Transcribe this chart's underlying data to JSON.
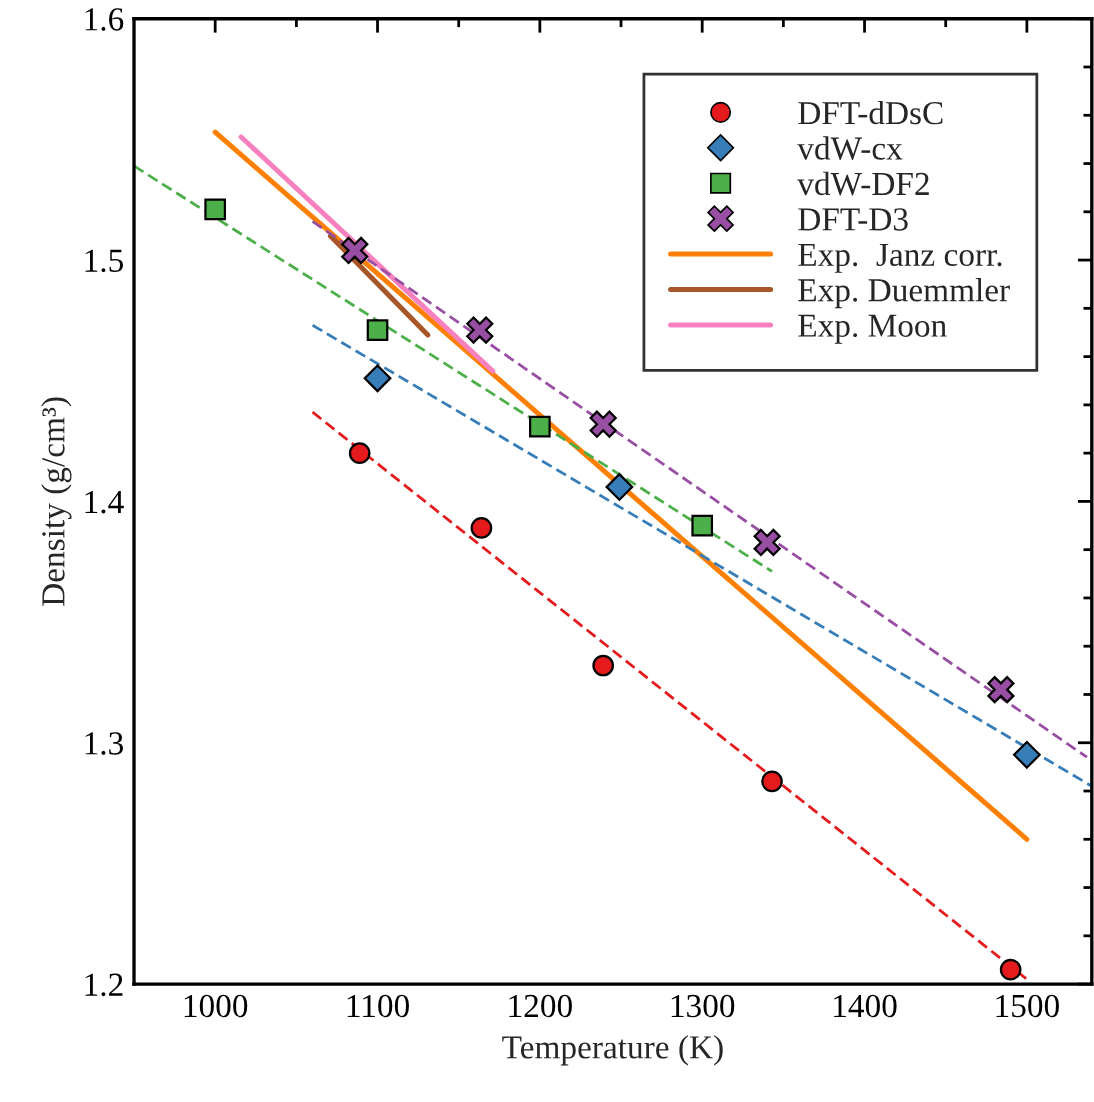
{
  "chart_data": {
    "type": "scatter",
    "xlabel": "Temperature (K)",
    "ylabel": "Density (g/cm³)",
    "xlim": [
      950,
      1540
    ],
    "ylim": [
      1.2,
      1.6
    ],
    "xticks": [
      1000,
      {
        "value": 1050,
        "label": null
      },
      1100,
      {
        "value": 1150,
        "label": null
      },
      1200,
      {
        "value": 1250,
        "label": null
      },
      1300,
      {
        "value": 1350,
        "label": null
      },
      1400,
      {
        "value": 1450,
        "label": null
      },
      1500
    ],
    "yticks": [
      1.2,
      {
        "value": 1.22,
        "label": null
      },
      {
        "value": 1.24,
        "label": null
      },
      {
        "value": 1.26,
        "label": null
      },
      {
        "value": 1.28,
        "label": null
      },
      1.3,
      {
        "value": 1.32,
        "label": null
      },
      {
        "value": 1.34,
        "label": null
      },
      {
        "value": 1.36,
        "label": null
      },
      {
        "value": 1.38,
        "label": null
      },
      1.4,
      {
        "value": 1.42,
        "label": null
      },
      {
        "value": 1.44,
        "label": null
      },
      {
        "value": 1.46,
        "label": null
      },
      {
        "value": 1.48,
        "label": null
      },
      1.5,
      {
        "value": 1.52,
        "label": null
      },
      {
        "value": 1.54,
        "label": null
      },
      {
        "value": 1.56,
        "label": null
      },
      {
        "value": 1.58,
        "label": null
      },
      1.6
    ],
    "grid": false,
    "legend": "top right",
    "series": [
      {
        "name": "DFT-dDsC",
        "marker": "circle",
        "color": "#e41a1c",
        "x": [
          1089,
          1164,
          1239,
          1343,
          1490
        ],
        "values": [
          1.42,
          1.389,
          1.332,
          1.284,
          1.206
        ]
      },
      {
        "name": "vdW-cx",
        "marker": "diamond",
        "color": "#377eb8",
        "x": [
          1100,
          1249,
          1500
        ],
        "values": [
          1.451,
          1.406,
          1.295
        ]
      },
      {
        "name": "vdW-DF2",
        "marker": "square",
        "color": "#4daf4a",
        "x": [
          1000,
          1100,
          1200,
          1300
        ],
        "values": [
          1.521,
          1.471,
          1.431,
          1.39
        ]
      },
      {
        "name": "DFT-D3",
        "marker": "cross",
        "color": "#984ea3",
        "x": [
          1086,
          1163,
          1239,
          1340,
          1484
        ],
        "values": [
          1.504,
          1.471,
          1.432,
          1.383,
          1.322
        ]
      },
      {
        "name": "Exp.  Janz corr.",
        "type": "line",
        "line_style": "solid",
        "color": "#ff7f00",
        "x": [
          1000,
          1500
        ],
        "values": [
          1.553,
          1.26
        ]
      },
      {
        "name": "Exp. Duemmler",
        "type": "line",
        "line_style": "solid",
        "color": "#a65628",
        "x": [
          1071,
          1131
        ],
        "values": [
          1.51,
          1.469
        ]
      },
      {
        "name": "Exp. Moon",
        "type": "line",
        "line_style": "solid",
        "color": "#f781bf",
        "x": [
          1016,
          1171
        ],
        "values": [
          1.551,
          1.454
        ]
      },
      {
        "type": "line",
        "line_style": "dashed",
        "color": "#e41a1c",
        "x": [
          1060,
          1500
        ],
        "values": [
          1.437,
          1.202
        ]
      },
      {
        "type": "line",
        "line_style": "dashed",
        "color": "#377eb8",
        "x": [
          1060,
          1540
        ],
        "values": [
          1.473,
          1.282
        ]
      },
      {
        "type": "line",
        "line_style": "dashed",
        "color": "#4daf4a",
        "x": [
          950,
          1343
        ],
        "values": [
          1.539,
          1.371
        ]
      },
      {
        "type": "line",
        "line_style": "dashed",
        "color": "#984ea3",
        "x": [
          1060,
          1537
        ],
        "values": [
          1.516,
          1.294
        ]
      }
    ]
  }
}
